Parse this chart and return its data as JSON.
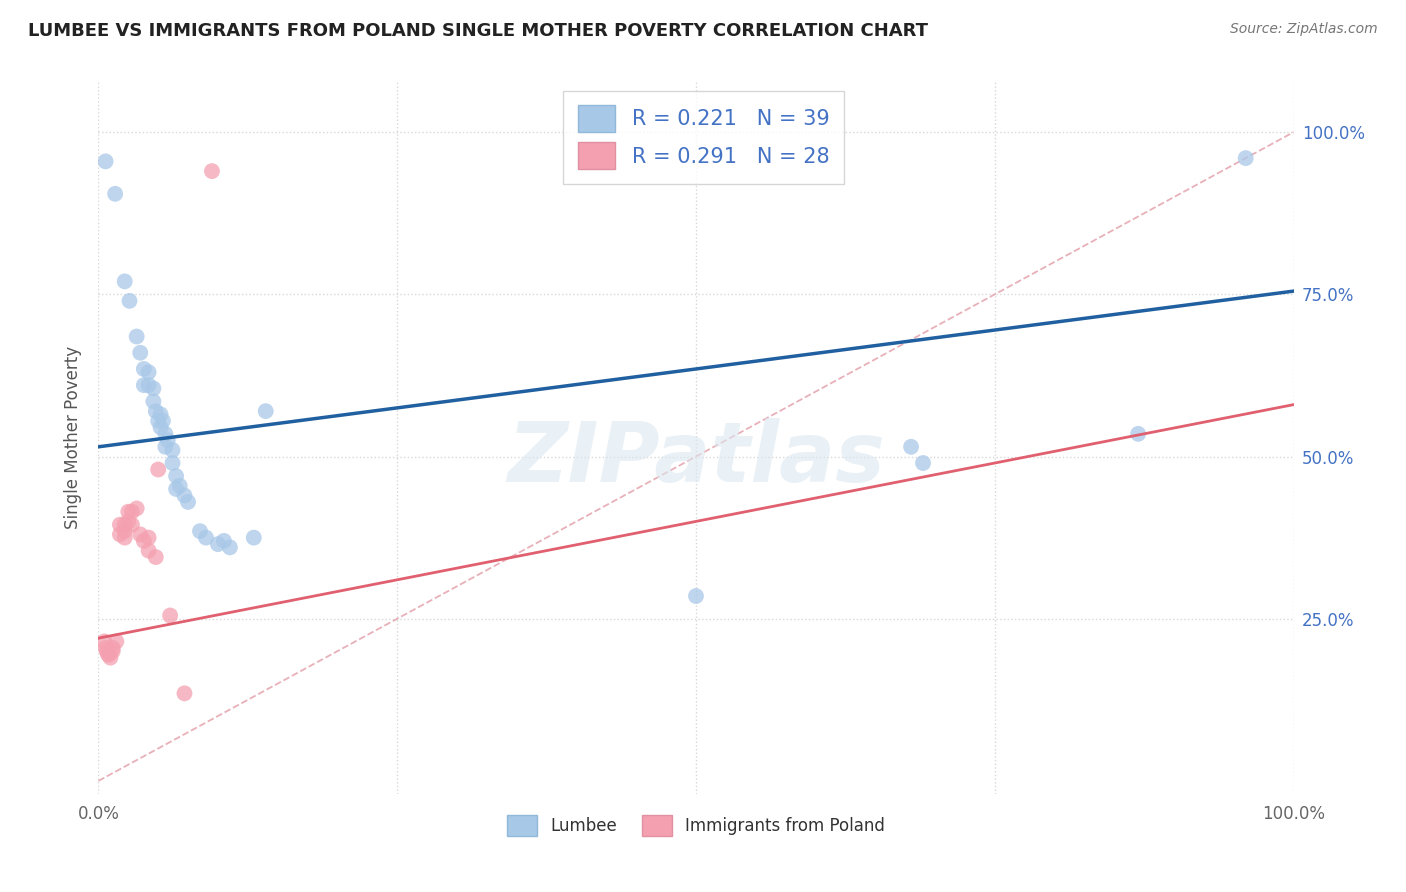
{
  "title": "LUMBEE VS IMMIGRANTS FROM POLAND SINGLE MOTHER POVERTY CORRELATION CHART",
  "source": "Source: ZipAtlas.com",
  "ylabel": "Single Mother Poverty",
  "ytick_labels": [
    "25.0%",
    "50.0%",
    "75.0%",
    "100.0%"
  ],
  "ytick_values": [
    0.25,
    0.5,
    0.75,
    1.0
  ],
  "xlim": [
    0.0,
    1.0
  ],
  "ylim": [
    -0.02,
    1.08
  ],
  "lumbee_color": "#a8c8e8",
  "poland_color": "#f4a0b0",
  "lumbee_line_color": "#2060a0",
  "poland_line_color": "#e06070",
  "diagonal_color": "#e8b0b8",
  "diagonal_style": "--",
  "watermark": "ZIPatlas",
  "lumbee_points": [
    [
      0.006,
      0.955
    ],
    [
      0.014,
      0.905
    ],
    [
      0.022,
      0.77
    ],
    [
      0.026,
      0.74
    ],
    [
      0.032,
      0.685
    ],
    [
      0.035,
      0.66
    ],
    [
      0.038,
      0.635
    ],
    [
      0.038,
      0.61
    ],
    [
      0.042,
      0.63
    ],
    [
      0.042,
      0.61
    ],
    [
      0.046,
      0.605
    ],
    [
      0.046,
      0.585
    ],
    [
      0.048,
      0.57
    ],
    [
      0.05,
      0.555
    ],
    [
      0.052,
      0.565
    ],
    [
      0.052,
      0.545
    ],
    [
      0.054,
      0.555
    ],
    [
      0.056,
      0.535
    ],
    [
      0.056,
      0.515
    ],
    [
      0.058,
      0.525
    ],
    [
      0.062,
      0.51
    ],
    [
      0.062,
      0.49
    ],
    [
      0.065,
      0.47
    ],
    [
      0.065,
      0.45
    ],
    [
      0.068,
      0.455
    ],
    [
      0.072,
      0.44
    ],
    [
      0.075,
      0.43
    ],
    [
      0.085,
      0.385
    ],
    [
      0.09,
      0.375
    ],
    [
      0.1,
      0.365
    ],
    [
      0.105,
      0.37
    ],
    [
      0.11,
      0.36
    ],
    [
      0.13,
      0.375
    ],
    [
      0.14,
      0.57
    ],
    [
      0.5,
      0.285
    ],
    [
      0.68,
      0.515
    ],
    [
      0.69,
      0.49
    ],
    [
      0.87,
      0.535
    ],
    [
      0.96,
      0.96
    ]
  ],
  "poland_points": [
    [
      0.005,
      0.215
    ],
    [
      0.006,
      0.205
    ],
    [
      0.007,
      0.2
    ],
    [
      0.008,
      0.195
    ],
    [
      0.009,
      0.195
    ],
    [
      0.01,
      0.19
    ],
    [
      0.012,
      0.205
    ],
    [
      0.012,
      0.2
    ],
    [
      0.015,
      0.215
    ],
    [
      0.018,
      0.395
    ],
    [
      0.018,
      0.38
    ],
    [
      0.022,
      0.395
    ],
    [
      0.022,
      0.385
    ],
    [
      0.022,
      0.375
    ],
    [
      0.025,
      0.415
    ],
    [
      0.025,
      0.4
    ],
    [
      0.028,
      0.415
    ],
    [
      0.028,
      0.395
    ],
    [
      0.032,
      0.42
    ],
    [
      0.035,
      0.38
    ],
    [
      0.038,
      0.37
    ],
    [
      0.042,
      0.375
    ],
    [
      0.042,
      0.355
    ],
    [
      0.048,
      0.345
    ],
    [
      0.05,
      0.48
    ],
    [
      0.06,
      0.255
    ],
    [
      0.072,
      0.135
    ],
    [
      0.095,
      0.94
    ]
  ],
  "lumbee_line": {
    "x0": 0.0,
    "y0": 0.515,
    "x1": 1.0,
    "y1": 0.755
  },
  "poland_line": {
    "x0": 0.0,
    "y0": 0.22,
    "x1": 1.0,
    "y1": 0.58
  },
  "background_color": "#ffffff"
}
